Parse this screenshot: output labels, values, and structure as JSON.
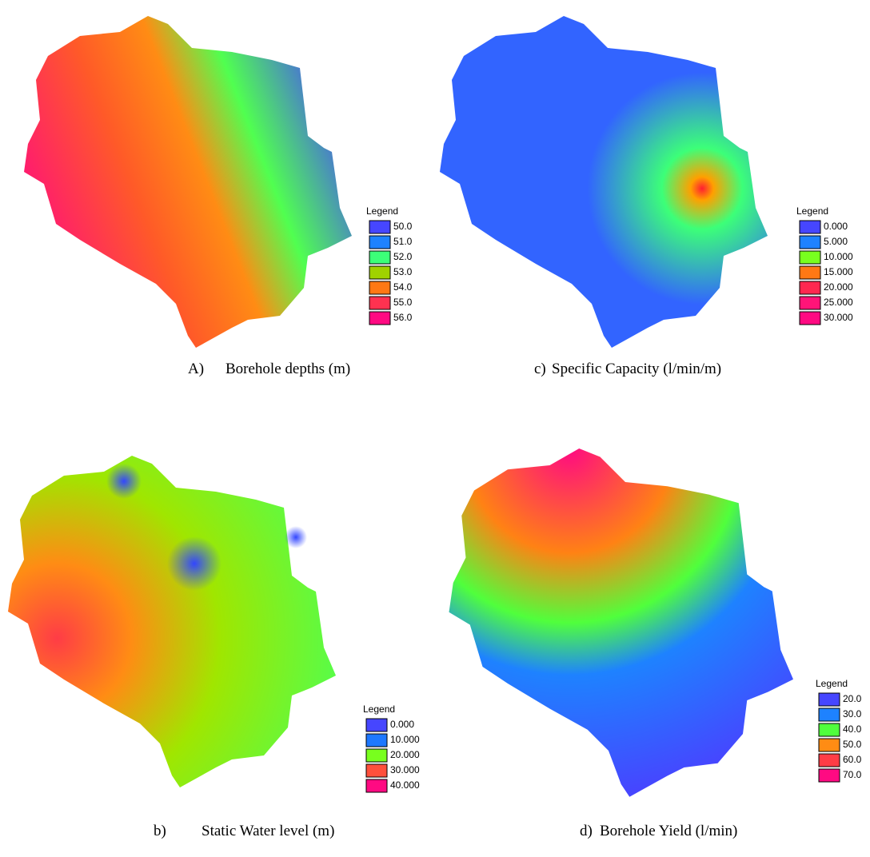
{
  "maps": [
    {
      "caption_label": "A)",
      "caption": "Borehole depths (m)",
      "legend": {
        "title": "Legend",
        "items": [
          {
            "label": "50.0",
            "color": "#4646ff"
          },
          {
            "label": "51.0",
            "color": "#1e82ff"
          },
          {
            "label": "52.0",
            "color": "#3cff78"
          },
          {
            "label": "53.0",
            "color": "#a0d200"
          },
          {
            "label": "54.0",
            "color": "#ff7814"
          },
          {
            "label": "55.0",
            "color": "#ff3250"
          },
          {
            "label": "56.0",
            "color": "#ff0a82"
          }
        ]
      }
    },
    {
      "caption_label": "c)",
      "caption": "Specific Capacity (l/min/m)",
      "legend": {
        "title": "Legend",
        "items": [
          {
            "label": "0.000",
            "color": "#4646ff"
          },
          {
            "label": "5.000",
            "color": "#1e82ff"
          },
          {
            "label": "10.000",
            "color": "#78ff1e"
          },
          {
            "label": "15.000",
            "color": "#ff7814"
          },
          {
            "label": "20.000",
            "color": "#ff2850"
          },
          {
            "label": "25.000",
            "color": "#ff1478"
          },
          {
            "label": "30.000",
            "color": "#ff0a82"
          }
        ]
      }
    },
    {
      "caption_label": "b)",
      "caption": "Static Water level (m)",
      "legend": {
        "title": "Legend",
        "items": [
          {
            "label": "0.000",
            "color": "#4646ff"
          },
          {
            "label": "10.000",
            "color": "#1e78ff"
          },
          {
            "label": "20.000",
            "color": "#78ff1e"
          },
          {
            "label": "30.000",
            "color": "#ff503c"
          },
          {
            "label": "40.000",
            "color": "#ff0a82"
          }
        ]
      }
    },
    {
      "caption_label": "d)",
      "caption": "Borehole Yield (l/min)",
      "legend": {
        "title": "Legend",
        "items": [
          {
            "label": "20.0",
            "color": "#4646ff"
          },
          {
            "label": "30.0",
            "color": "#1e82ff"
          },
          {
            "label": "40.0",
            "color": "#50ff3c"
          },
          {
            "label": "50.0",
            "color": "#ff8c14"
          },
          {
            "label": "60.0",
            "color": "#ff3c46"
          },
          {
            "label": "70.0",
            "color": "#ff0a82"
          }
        ]
      }
    }
  ]
}
